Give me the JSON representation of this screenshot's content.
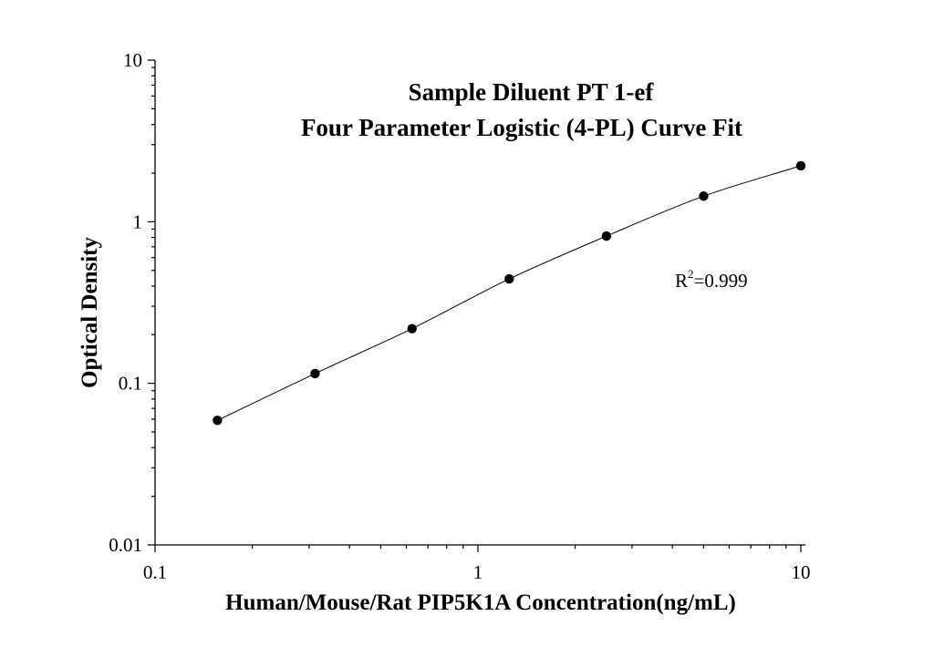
{
  "chart_data": {
    "type": "scatter",
    "title": "Sample Diluent PT 1-ef",
    "subtitle": "Four Parameter Logistic (4-PL) Curve Fit",
    "xlabel": "Human/Mouse/Rat PIP5K1A Concentration(ng/mL)",
    "ylabel": "Optical Density",
    "x_scale": "log",
    "y_scale": "log",
    "xlim": [
      0.1,
      10
    ],
    "ylim": [
      0.01,
      10
    ],
    "x_ticks": [
      {
        "value": 0.1,
        "label": "0.1"
      },
      {
        "value": 1,
        "label": "1"
      },
      {
        "value": 10,
        "label": "10"
      }
    ],
    "y_ticks": [
      {
        "value": 0.01,
        "label": "0.01"
      },
      {
        "value": 0.1,
        "label": "0.1"
      },
      {
        "value": 1,
        "label": "1"
      },
      {
        "value": 10,
        "label": "10"
      }
    ],
    "grid": false,
    "series": [
      {
        "x": [
          0.156,
          0.313,
          0.625,
          1.25,
          2.5,
          5,
          10
        ],
        "y": [
          0.059,
          0.115,
          0.218,
          0.443,
          0.815,
          1.44,
          2.22
        ]
      }
    ],
    "annotation": {
      "r_symbol": "R",
      "exponent": "2",
      "value_text": "=0.999"
    }
  }
}
